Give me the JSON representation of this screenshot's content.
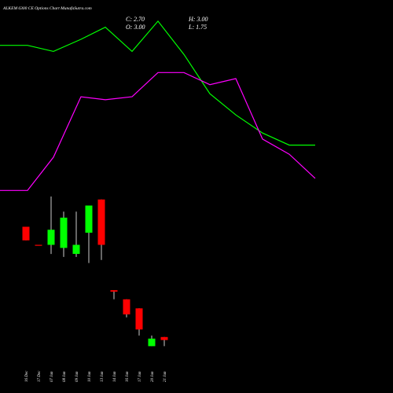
{
  "chart_data": {
    "type": "candlestick",
    "title": "ALKEM 6300 CE Options  Chart MunafaSutra.com",
    "ohlc_readout": {
      "close": "C: 2.70",
      "open": "O: 3.00",
      "high": "H: 3.00",
      "low": "L: 1.75"
    },
    "categories": [
      "16 Dec",
      "17 Dec",
      "07 Jan",
      "08 Jan",
      "09 Jan",
      "10 Jan",
      "13 Jan",
      "14 Jan",
      "16 Jan",
      "17 Jan",
      "20 Jan",
      "21 Jan"
    ],
    "candles": [
      {
        "date": "16 Dec",
        "open": 55.0,
        "high": 55.0,
        "low": 50.5,
        "close": 50.5,
        "direction": "down"
      },
      {
        "date": "17 Dec",
        "open": 49.0,
        "high": 49.0,
        "low": 48.8,
        "close": 48.8,
        "direction": "down"
      },
      {
        "date": "07 Jan",
        "open": 49.0,
        "high": 65.0,
        "low": 46.0,
        "close": 54.0,
        "direction": "up"
      },
      {
        "date": "08 Jan",
        "open": 48.0,
        "high": 60.0,
        "low": 45.0,
        "close": 58.0,
        "direction": "up"
      },
      {
        "date": "09 Jan",
        "open": 46.0,
        "high": 60.0,
        "low": 45.0,
        "close": 49.0,
        "direction": "up"
      },
      {
        "date": "10 Jan",
        "open": 53.0,
        "high": 61.0,
        "low": 43.0,
        "close": 62.0,
        "direction": "up"
      },
      {
        "date": "13 Jan",
        "open": 64.0,
        "high": 64.0,
        "low": 44.0,
        "close": 49.0,
        "direction": "down"
      },
      {
        "date": "14 Jan",
        "open": 34.0,
        "high": 34.0,
        "low": 31.0,
        "close": 33.5,
        "direction": "down"
      },
      {
        "date": "16 Jan",
        "open": 31.0,
        "high": 31.0,
        "low": 25.0,
        "close": 26.0,
        "direction": "down"
      },
      {
        "date": "17 Jan",
        "open": 28.0,
        "high": 28.0,
        "low": 19.0,
        "close": 21.0,
        "direction": "down"
      },
      {
        "date": "20 Jan",
        "open": 15.5,
        "high": 19.0,
        "low": 15.5,
        "close": 18.0,
        "direction": "up"
      },
      {
        "date": "21 Jan",
        "open": 18.5,
        "high": 18.5,
        "low": 15.5,
        "close": 17.5,
        "direction": "down"
      }
    ],
    "lines": [
      {
        "color": "#00ff00",
        "points": [
          [
            0,
            115
          ],
          [
            35,
            115
          ],
          [
            68,
            113
          ],
          [
            103,
            117
          ],
          [
            134,
            121
          ],
          [
            168,
            113
          ],
          [
            201,
            123
          ],
          [
            234,
            112
          ],
          [
            267,
            99
          ],
          [
            300,
            92
          ],
          [
            334,
            86
          ],
          [
            368,
            82
          ],
          [
            401,
            82
          ]
        ]
      },
      {
        "color": "#ff00ff",
        "points": [
          [
            0,
            67
          ],
          [
            35,
            67
          ],
          [
            68,
            78
          ],
          [
            103,
            98
          ],
          [
            134,
            97
          ],
          [
            168,
            98
          ],
          [
            201,
            106
          ],
          [
            234,
            106
          ],
          [
            267,
            102
          ],
          [
            300,
            104
          ],
          [
            334,
            84
          ],
          [
            368,
            79
          ],
          [
            401,
            71
          ]
        ]
      }
    ],
    "ylim": [
      0,
      130
    ],
    "colors": {
      "up": "#00ff00",
      "down": "#ff0000",
      "wick": "#ffffff",
      "background": "#000000"
    }
  }
}
